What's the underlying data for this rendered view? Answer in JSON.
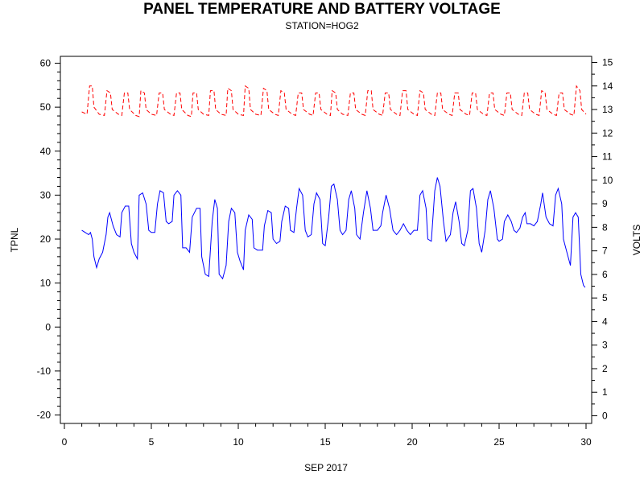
{
  "chart_data": {
    "type": "line",
    "title": "PANEL TEMPERATURE AND BATTERY VOLTAGE",
    "subtitle": "STATION=HOG2",
    "xlabel": "SEP 2017",
    "ylabel_left": "TPNL",
    "ylabel_right": "VOLTS",
    "xlim": [
      0,
      30.6
    ],
    "ylim_left": [
      -22,
      62
    ],
    "ylim_right": [
      -0.4,
      15.4
    ],
    "x_ticks": [
      0,
      5,
      10,
      15,
      20,
      25,
      30
    ],
    "y_ticks_left": [
      -20,
      -10,
      0,
      10,
      20,
      30,
      40,
      50,
      60
    ],
    "y_ticks_right": [
      0,
      1,
      2,
      3,
      4,
      5,
      6,
      7,
      8,
      9,
      10,
      11,
      12,
      13,
      14,
      15
    ],
    "grid": false,
    "series": [
      {
        "axis": "left",
        "color": "#0000ff",
        "style": "solid",
        "points": [
          [
            1.0,
            22
          ],
          [
            1.2,
            21.5
          ],
          [
            1.4,
            21
          ],
          [
            1.5,
            21.5
          ],
          [
            1.6,
            20
          ],
          [
            1.7,
            16
          ],
          [
            1.85,
            13.5
          ],
          [
            2.0,
            15.5
          ],
          [
            2.2,
            17
          ],
          [
            2.4,
            21
          ],
          [
            2.5,
            25
          ],
          [
            2.6,
            26
          ],
          [
            2.8,
            23
          ],
          [
            3.0,
            21
          ],
          [
            3.2,
            20.5
          ],
          [
            3.3,
            26
          ],
          [
            3.5,
            27.5
          ],
          [
            3.7,
            27.5
          ],
          [
            3.85,
            19
          ],
          [
            4.0,
            17
          ],
          [
            4.2,
            15.5
          ],
          [
            4.3,
            30
          ],
          [
            4.5,
            30.5
          ],
          [
            4.7,
            28
          ],
          [
            4.85,
            22
          ],
          [
            5.0,
            21.5
          ],
          [
            5.2,
            21.5
          ],
          [
            5.35,
            28
          ],
          [
            5.5,
            31
          ],
          [
            5.7,
            30.5
          ],
          [
            5.85,
            24
          ],
          [
            6.0,
            23.5
          ],
          [
            6.2,
            24
          ],
          [
            6.3,
            30
          ],
          [
            6.5,
            31
          ],
          [
            6.7,
            30
          ],
          [
            6.8,
            18
          ],
          [
            7.0,
            18
          ],
          [
            7.2,
            17
          ],
          [
            7.35,
            25
          ],
          [
            7.6,
            27
          ],
          [
            7.8,
            27
          ],
          [
            7.9,
            16
          ],
          [
            8.1,
            12
          ],
          [
            8.3,
            11.5
          ],
          [
            8.5,
            24
          ],
          [
            8.65,
            29
          ],
          [
            8.8,
            27
          ],
          [
            8.9,
            12
          ],
          [
            9.1,
            11
          ],
          [
            9.3,
            14
          ],
          [
            9.45,
            24
          ],
          [
            9.6,
            27
          ],
          [
            9.8,
            26
          ],
          [
            9.95,
            17
          ],
          [
            10.1,
            15
          ],
          [
            10.3,
            13
          ],
          [
            10.4,
            22
          ],
          [
            10.6,
            25.5
          ],
          [
            10.8,
            24.5
          ],
          [
            10.9,
            18
          ],
          [
            11.1,
            17.5
          ],
          [
            11.4,
            17.5
          ],
          [
            11.5,
            23
          ],
          [
            11.7,
            26.5
          ],
          [
            11.9,
            26
          ],
          [
            12.0,
            20
          ],
          [
            12.2,
            19
          ],
          [
            12.4,
            19.5
          ],
          [
            12.5,
            24
          ],
          [
            12.7,
            27.5
          ],
          [
            12.9,
            27
          ],
          [
            13.0,
            22
          ],
          [
            13.2,
            21.5
          ],
          [
            13.35,
            27
          ],
          [
            13.5,
            31.5
          ],
          [
            13.7,
            30
          ],
          [
            13.85,
            22
          ],
          [
            14.0,
            20.5
          ],
          [
            14.2,
            21
          ],
          [
            14.35,
            28
          ],
          [
            14.5,
            30.5
          ],
          [
            14.7,
            29
          ],
          [
            14.85,
            19
          ],
          [
            15.0,
            18.5
          ],
          [
            15.2,
            25
          ],
          [
            15.35,
            32
          ],
          [
            15.5,
            32.5
          ],
          [
            15.7,
            29
          ],
          [
            15.85,
            22
          ],
          [
            16.0,
            21
          ],
          [
            16.2,
            22
          ],
          [
            16.35,
            29
          ],
          [
            16.5,
            31
          ],
          [
            16.7,
            27
          ],
          [
            16.8,
            21
          ],
          [
            17.0,
            20
          ],
          [
            17.2,
            26
          ],
          [
            17.4,
            31
          ],
          [
            17.6,
            27
          ],
          [
            17.75,
            22
          ],
          [
            18.0,
            22
          ],
          [
            18.2,
            23
          ],
          [
            18.3,
            26
          ],
          [
            18.5,
            30
          ],
          [
            18.7,
            27
          ],
          [
            18.9,
            22
          ],
          [
            19.1,
            21
          ],
          [
            19.3,
            22
          ],
          [
            19.5,
            23.5
          ],
          [
            19.7,
            22
          ],
          [
            19.9,
            21
          ],
          [
            20.1,
            22
          ],
          [
            20.3,
            22
          ],
          [
            20.45,
            30
          ],
          [
            20.6,
            31
          ],
          [
            20.8,
            27
          ],
          [
            20.9,
            20
          ],
          [
            21.1,
            19.5
          ],
          [
            21.3,
            31
          ],
          [
            21.45,
            34
          ],
          [
            21.6,
            32
          ],
          [
            21.8,
            24
          ],
          [
            21.95,
            19.5
          ],
          [
            22.2,
            21
          ],
          [
            22.35,
            26
          ],
          [
            22.5,
            28.5
          ],
          [
            22.7,
            24
          ],
          [
            22.85,
            19
          ],
          [
            23.0,
            18.5
          ],
          [
            23.2,
            22
          ],
          [
            23.35,
            31
          ],
          [
            23.5,
            31.5
          ],
          [
            23.7,
            27
          ],
          [
            23.85,
            19
          ],
          [
            24.0,
            17
          ],
          [
            24.2,
            22
          ],
          [
            24.35,
            29
          ],
          [
            24.5,
            31
          ],
          [
            24.7,
            27
          ],
          [
            24.9,
            20
          ],
          [
            25.0,
            19.5
          ],
          [
            25.2,
            20
          ],
          [
            25.3,
            24
          ],
          [
            25.5,
            25.5
          ],
          [
            25.7,
            24
          ],
          [
            25.85,
            22
          ],
          [
            26.0,
            21.5
          ],
          [
            26.2,
            22.5
          ],
          [
            26.35,
            25
          ],
          [
            26.5,
            26
          ],
          [
            26.6,
            23.5
          ],
          [
            26.8,
            23.5
          ],
          [
            27.0,
            23
          ],
          [
            27.2,
            24
          ],
          [
            27.4,
            28
          ],
          [
            27.5,
            30.5
          ],
          [
            27.7,
            25
          ],
          [
            27.9,
            23.5
          ],
          [
            28.1,
            23
          ],
          [
            28.25,
            30
          ],
          [
            28.4,
            31.5
          ],
          [
            28.6,
            28
          ],
          [
            28.7,
            20
          ],
          [
            28.9,
            17
          ],
          [
            29.1,
            14
          ],
          [
            29.25,
            25
          ],
          [
            29.4,
            26
          ],
          [
            29.55,
            25
          ],
          [
            29.7,
            12
          ],
          [
            29.85,
            9.5
          ],
          [
            29.95,
            9
          ]
        ]
      },
      {
        "axis": "right",
        "color": "#ff0000",
        "style": "dashed",
        "points": [
          [
            1.0,
            12.9
          ],
          [
            1.3,
            12.8
          ],
          [
            1.45,
            14
          ],
          [
            1.6,
            14
          ],
          [
            1.7,
            13.1
          ],
          [
            2.0,
            12.8
          ],
          [
            2.3,
            12.75
          ],
          [
            2.45,
            13.8
          ],
          [
            2.65,
            13.7
          ],
          [
            2.75,
            13.0
          ],
          [
            3.1,
            12.8
          ],
          [
            3.3,
            12.75
          ],
          [
            3.45,
            13.7
          ],
          [
            3.65,
            13.7
          ],
          [
            3.75,
            13.0
          ],
          [
            4.1,
            12.75
          ],
          [
            4.3,
            12.7
          ],
          [
            4.4,
            13.8
          ],
          [
            4.6,
            13.7
          ],
          [
            4.7,
            13.0
          ],
          [
            5.0,
            12.8
          ],
          [
            5.3,
            12.75
          ],
          [
            5.45,
            13.7
          ],
          [
            5.65,
            13.7
          ],
          [
            5.75,
            13.0
          ],
          [
            6.1,
            12.8
          ],
          [
            6.3,
            12.75
          ],
          [
            6.45,
            13.7
          ],
          [
            6.65,
            13.7
          ],
          [
            6.75,
            13.0
          ],
          [
            7.1,
            12.75
          ],
          [
            7.3,
            12.7
          ],
          [
            7.4,
            13.7
          ],
          [
            7.6,
            13.7
          ],
          [
            7.7,
            13.0
          ],
          [
            8.0,
            12.8
          ],
          [
            8.3,
            12.75
          ],
          [
            8.4,
            13.8
          ],
          [
            8.6,
            13.8
          ],
          [
            8.7,
            13.0
          ],
          [
            9.0,
            12.8
          ],
          [
            9.3,
            12.75
          ],
          [
            9.4,
            13.9
          ],
          [
            9.6,
            13.8
          ],
          [
            9.7,
            13.0
          ],
          [
            10.0,
            12.8
          ],
          [
            10.3,
            12.75
          ],
          [
            10.4,
            14
          ],
          [
            10.6,
            13.9
          ],
          [
            10.7,
            13.0
          ],
          [
            11.0,
            12.8
          ],
          [
            11.3,
            12.75
          ],
          [
            11.45,
            13.9
          ],
          [
            11.65,
            13.8
          ],
          [
            11.75,
            13.0
          ],
          [
            12.1,
            12.8
          ],
          [
            12.3,
            12.75
          ],
          [
            12.45,
            13.8
          ],
          [
            12.65,
            13.7
          ],
          [
            12.75,
            13.0
          ],
          [
            13.1,
            12.8
          ],
          [
            13.3,
            12.75
          ],
          [
            13.45,
            13.7
          ],
          [
            13.65,
            13.7
          ],
          [
            13.75,
            13.0
          ],
          [
            14.1,
            12.8
          ],
          [
            14.3,
            12.75
          ],
          [
            14.45,
            13.7
          ],
          [
            14.65,
            13.7
          ],
          [
            14.75,
            13.0
          ],
          [
            15.1,
            12.8
          ],
          [
            15.3,
            12.75
          ],
          [
            15.4,
            13.8
          ],
          [
            15.6,
            13.7
          ],
          [
            15.7,
            13.0
          ],
          [
            16.0,
            12.8
          ],
          [
            16.3,
            12.75
          ],
          [
            16.45,
            13.7
          ],
          [
            16.65,
            13.7
          ],
          [
            16.75,
            13.0
          ],
          [
            17.1,
            12.8
          ],
          [
            17.3,
            12.75
          ],
          [
            17.45,
            13.8
          ],
          [
            17.65,
            13.8
          ],
          [
            17.75,
            13.0
          ],
          [
            18.1,
            12.8
          ],
          [
            18.3,
            12.75
          ],
          [
            18.45,
            13.7
          ],
          [
            18.65,
            13.7
          ],
          [
            18.75,
            13.0
          ],
          [
            19.1,
            12.8
          ],
          [
            19.3,
            12.75
          ],
          [
            19.45,
            13.8
          ],
          [
            19.65,
            13.8
          ],
          [
            19.75,
            13.0
          ],
          [
            20.1,
            12.8
          ],
          [
            20.3,
            12.75
          ],
          [
            20.45,
            13.8
          ],
          [
            20.65,
            13.7
          ],
          [
            20.75,
            13.0
          ],
          [
            21.1,
            12.8
          ],
          [
            21.3,
            12.75
          ],
          [
            21.45,
            13.7
          ],
          [
            21.65,
            13.7
          ],
          [
            21.75,
            13.0
          ],
          [
            22.1,
            12.8
          ],
          [
            22.3,
            12.75
          ],
          [
            22.45,
            13.7
          ],
          [
            22.65,
            13.7
          ],
          [
            22.75,
            13.0
          ],
          [
            23.1,
            12.8
          ],
          [
            23.3,
            12.75
          ],
          [
            23.45,
            13.7
          ],
          [
            23.65,
            13.7
          ],
          [
            23.75,
            13.0
          ],
          [
            24.1,
            12.8
          ],
          [
            24.3,
            12.75
          ],
          [
            24.45,
            13.7
          ],
          [
            24.65,
            13.7
          ],
          [
            24.75,
            13.0
          ],
          [
            25.1,
            12.8
          ],
          [
            25.3,
            12.75
          ],
          [
            25.45,
            13.7
          ],
          [
            25.65,
            13.7
          ],
          [
            25.75,
            13.0
          ],
          [
            26.1,
            12.8
          ],
          [
            26.3,
            12.75
          ],
          [
            26.45,
            13.7
          ],
          [
            26.65,
            13.7
          ],
          [
            26.75,
            13.0
          ],
          [
            27.1,
            12.8
          ],
          [
            27.3,
            12.75
          ],
          [
            27.45,
            13.8
          ],
          [
            27.65,
            13.7
          ],
          [
            27.75,
            13.0
          ],
          [
            28.1,
            12.8
          ],
          [
            28.3,
            12.75
          ],
          [
            28.45,
            13.7
          ],
          [
            28.65,
            13.7
          ],
          [
            28.75,
            13.0
          ],
          [
            29.1,
            12.8
          ],
          [
            29.3,
            12.75
          ],
          [
            29.45,
            14
          ],
          [
            29.65,
            13.8
          ],
          [
            29.75,
            13.0
          ],
          [
            30.0,
            12.8
          ]
        ]
      }
    ]
  }
}
